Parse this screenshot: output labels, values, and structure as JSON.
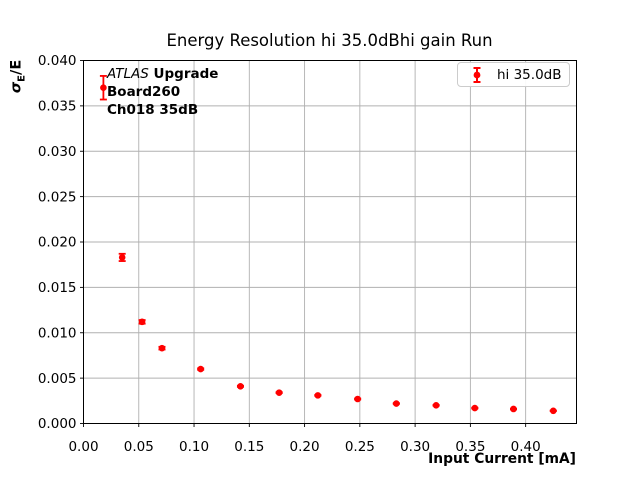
{
  "figure": {
    "background": "#ffffff"
  },
  "chart_data": {
    "type": "scatter",
    "title": "Energy Resolution hi 35.0dBhi gain Run",
    "xlabel": "Input Current [mA]",
    "ylabel": "σE/E",
    "ylabel_parts": {
      "sigma": "σ",
      "subscript": "E",
      "rest": "/E"
    },
    "xlim": [
      0,
      0.446
    ],
    "ylim": [
      0,
      0.04
    ],
    "grid": true,
    "grid_color": "#b0b0b0",
    "axis_color": "#000000",
    "xtick_values": [
      0,
      0.05,
      0.1,
      0.15,
      0.2,
      0.25,
      0.3,
      0.35,
      0.4
    ],
    "xtick_labels": [
      "0.00",
      "0.05",
      "0.10",
      "0.15",
      "0.20",
      "0.25",
      "0.30",
      "0.35",
      "0.40"
    ],
    "ytick_values": [
      0,
      0.005,
      0.01,
      0.015,
      0.02,
      0.025,
      0.03,
      0.035,
      0.04
    ],
    "ytick_labels": [
      "0.000",
      "0.005",
      "0.010",
      "0.015",
      "0.020",
      "0.025",
      "0.030",
      "0.035",
      "0.040"
    ],
    "legend": {
      "position": "upper right",
      "entries": [
        {
          "label": "hi 35.0dB",
          "color": "#ff0000",
          "marker": "errorbar-dot"
        }
      ]
    },
    "annotation": {
      "atlas": "ATLAS",
      "line1_rest": " Upgrade",
      "line2": "Board260",
      "line3": "Ch018 35dB"
    },
    "series": [
      {
        "name": "hi 35.0dB",
        "color": "#ff0000",
        "marker": "circle",
        "x": [
          0.018,
          0.035,
          0.053,
          0.071,
          0.106,
          0.142,
          0.177,
          0.212,
          0.248,
          0.283,
          0.319,
          0.354,
          0.389,
          0.425
        ],
        "y": [
          0.037,
          0.0183,
          0.0112,
          0.0083,
          0.006,
          0.0041,
          0.0034,
          0.0031,
          0.0027,
          0.0022,
          0.002,
          0.0017,
          0.0016,
          0.0014
        ],
        "yerr": [
          0.0013,
          0.0004,
          0.0002,
          0.00015,
          8e-05,
          6e-05,
          5e-05,
          5e-05,
          5e-05,
          4e-05,
          4e-05,
          4e-05,
          3e-05,
          3e-05
        ]
      }
    ]
  }
}
